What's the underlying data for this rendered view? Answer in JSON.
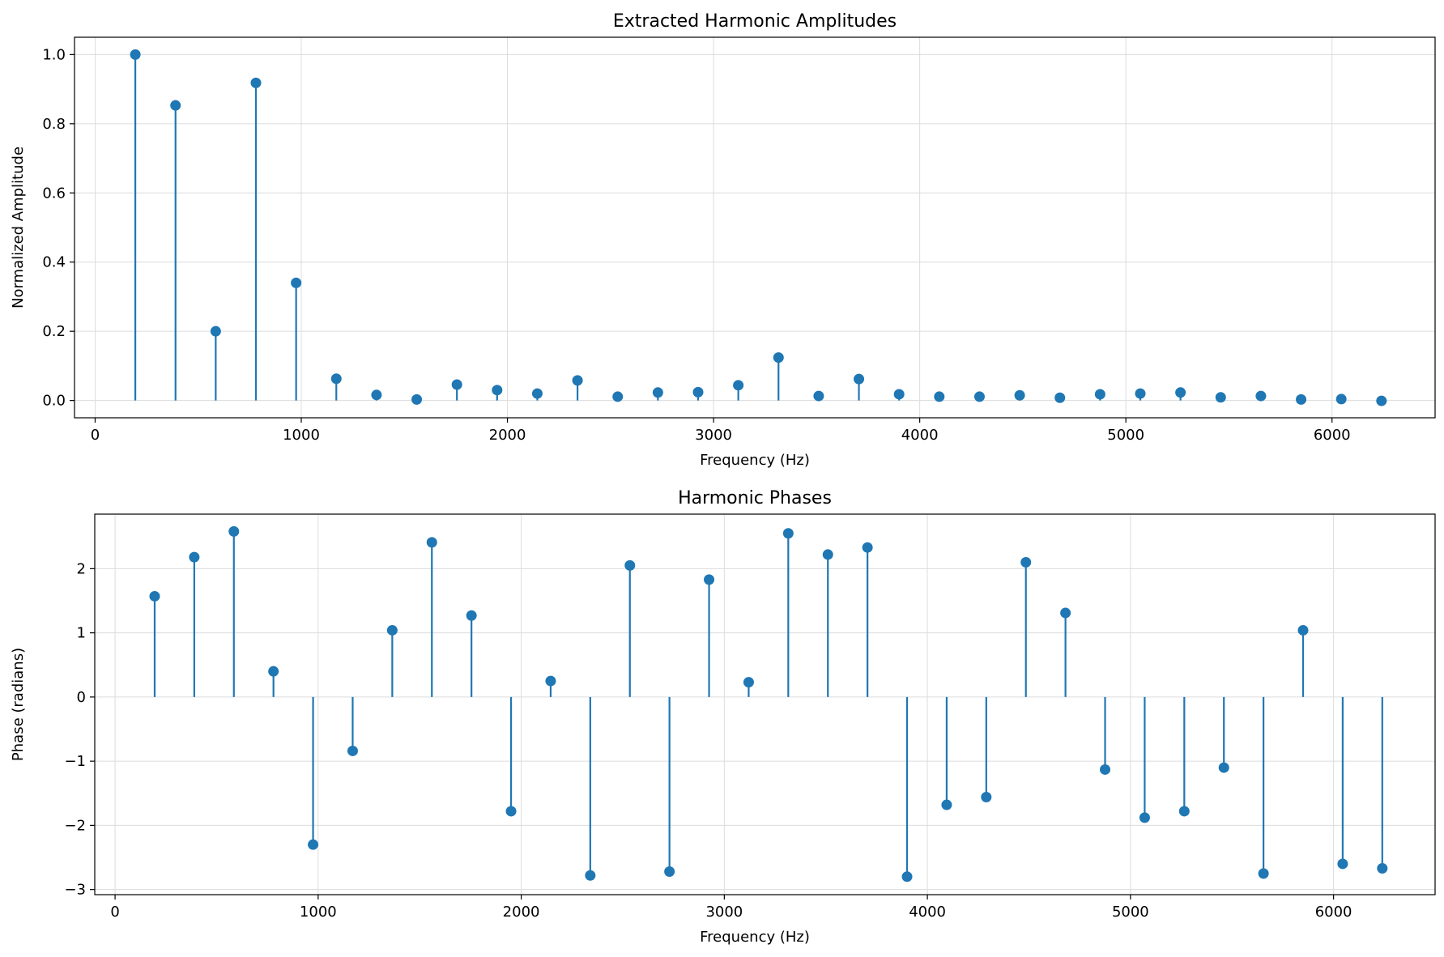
{
  "colors": {
    "stem": "#1f77b4",
    "grid": "#dcdcdc",
    "axis": "#000000"
  },
  "chart_data": [
    {
      "type": "stem",
      "title": "Extracted Harmonic Amplitudes",
      "xlabel": "Frequency (Hz)",
      "ylabel": "Normalized Amplitude",
      "xlim": [
        -100,
        6500
      ],
      "ylim": [
        -0.05,
        1.05
      ],
      "grid": true,
      "xticks": [
        0,
        1000,
        2000,
        3000,
        4000,
        5000,
        6000
      ],
      "xtick_labels": [
        "0",
        "1000",
        "2000",
        "3000",
        "4000",
        "5000",
        "6000"
      ],
      "yticks": [
        0,
        0.2,
        0.4,
        0.6,
        0.8,
        1.0
      ],
      "ytick_labels": [
        "0.0",
        "0.2",
        "0.4",
        "0.6",
        "0.8",
        "1.0"
      ],
      "x": [
        195,
        390,
        585,
        780,
        975,
        1170,
        1365,
        1560,
        1755,
        1950,
        2145,
        2340,
        2535,
        2730,
        2925,
        3120,
        3315,
        3510,
        3705,
        3900,
        4095,
        4290,
        4485,
        4680,
        4875,
        5070,
        5265,
        5460,
        5655,
        5850,
        6045,
        6240
      ],
      "y": [
        1.0,
        0.853,
        0.2,
        0.918,
        0.34,
        0.063,
        0.016,
        0.003,
        0.046,
        0.03,
        0.02,
        0.058,
        0.011,
        0.023,
        0.024,
        0.044,
        0.124,
        0.013,
        0.062,
        0.018,
        0.011,
        0.011,
        0.015,
        0.008,
        0.018,
        0.02,
        0.023,
        0.009,
        0.013,
        0.003,
        0.004,
        -0.001
      ]
    },
    {
      "type": "stem",
      "title": "Harmonic Phases",
      "xlabel": "Frequency (Hz)",
      "ylabel": "Phase (radians)",
      "xlim": [
        -100,
        6500
      ],
      "ylim": [
        -3.08,
        2.85
      ],
      "grid": true,
      "xticks": [
        0,
        1000,
        2000,
        3000,
        4000,
        5000,
        6000
      ],
      "xtick_labels": [
        "0",
        "1000",
        "2000",
        "3000",
        "4000",
        "5000",
        "6000"
      ],
      "yticks": [
        -3,
        -2,
        -1,
        0,
        1,
        2
      ],
      "ytick_labels": [
        "−3",
        "−2",
        "−1",
        "0",
        "1",
        "2"
      ],
      "x": [
        195,
        390,
        585,
        780,
        975,
        1170,
        1365,
        1560,
        1755,
        1950,
        2145,
        2340,
        2535,
        2730,
        2925,
        3120,
        3315,
        3510,
        3705,
        3900,
        4095,
        4290,
        4485,
        4680,
        4875,
        5070,
        5265,
        5460,
        5655,
        5850,
        6045,
        6240
      ],
      "y": [
        1.57,
        2.18,
        2.58,
        0.4,
        -2.3,
        -0.84,
        1.04,
        2.41,
        1.27,
        -1.78,
        0.25,
        -2.78,
        2.05,
        -2.72,
        1.83,
        0.23,
        2.55,
        2.22,
        2.33,
        -2.8,
        -1.68,
        -1.56,
        2.1,
        1.31,
        -1.13,
        -1.88,
        -1.78,
        -1.1,
        -2.75,
        1.04,
        -2.6,
        -2.67
      ]
    }
  ]
}
